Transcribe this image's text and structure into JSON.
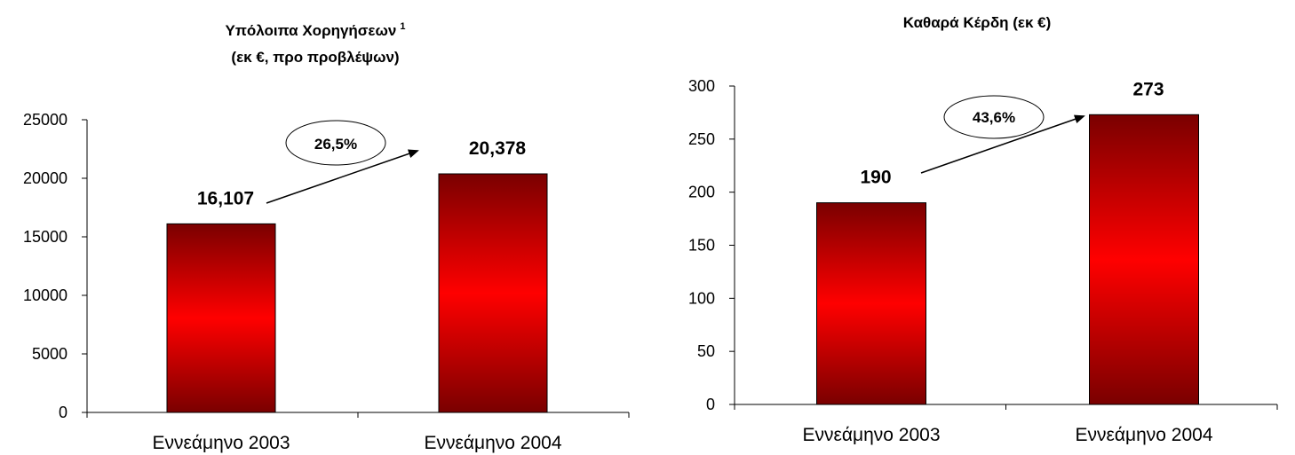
{
  "chart_data": [
    {
      "type": "bar",
      "title": "Υπόλοιπα Χορηγήσεων",
      "title_superscript": "1",
      "subtitle": "(εκ €, προ προβλέψων)",
      "categories": [
        "Εννεάμηνο 2003",
        "Εννεάμηνο 2004"
      ],
      "values": [
        16107,
        20378
      ],
      "data_labels": [
        "16,107",
        "20,378"
      ],
      "y_ticks": [
        "0",
        "5000",
        "10000",
        "15000",
        "20000",
        "25000"
      ],
      "ylim": [
        0,
        25000
      ],
      "growth_label": "26,5%",
      "grid": false,
      "bar_color": "#ff0000",
      "bar_edge_color": "#7a0000"
    },
    {
      "type": "bar",
      "title": "Καθαρά Κέρδη (εκ €)",
      "categories": [
        "Εννεάμηνο 2003",
        "Εννεάμηνο 2004"
      ],
      "values": [
        190,
        273
      ],
      "data_labels": [
        "190",
        "273"
      ],
      "y_ticks": [
        "0",
        "50",
        "100",
        "150",
        "200",
        "250",
        "300"
      ],
      "ylim": [
        0,
        300
      ],
      "growth_label": "43,6%",
      "grid": false,
      "bar_color": "#ff0000",
      "bar_edge_color": "#7a0000"
    }
  ]
}
